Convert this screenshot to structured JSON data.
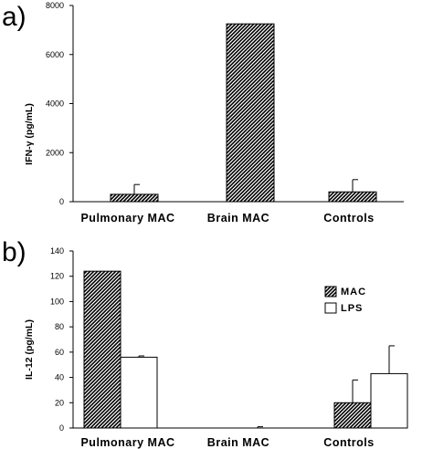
{
  "chart_data": [
    {
      "type": "bar",
      "panel_label": "a)",
      "ylabel": "IFN-γ (pg/mL)",
      "xlabel": "",
      "categories": [
        "Pulmonary MAC",
        "Brain MAC",
        "Controls"
      ],
      "ylim": [
        0,
        8000
      ],
      "yticks": [
        0,
        2000,
        4000,
        6000,
        8000
      ],
      "grid": false,
      "series": [
        {
          "values": [
            300,
            7250,
            400
          ],
          "errors": [
            400,
            0,
            500
          ],
          "pattern": "hatched"
        }
      ]
    },
    {
      "type": "bar",
      "panel_label": "b)",
      "ylabel": "IL-12 (pg/mL)",
      "xlabel": "",
      "categories": [
        "Pulmonary MAC",
        "Brain MAC",
        "Controls"
      ],
      "ylim": [
        0,
        140
      ],
      "yticks": [
        0,
        20,
        40,
        60,
        80,
        100,
        120,
        140
      ],
      "grid": false,
      "legend_position": "right",
      "series": [
        {
          "name": "MAC",
          "values": [
            124,
            0,
            20
          ],
          "errors": [
            0,
            1,
            18
          ],
          "pattern": "hatched"
        },
        {
          "name": "LPS",
          "values": [
            56,
            0,
            43
          ],
          "errors": [
            1,
            0,
            22
          ],
          "pattern": "white"
        }
      ]
    }
  ]
}
